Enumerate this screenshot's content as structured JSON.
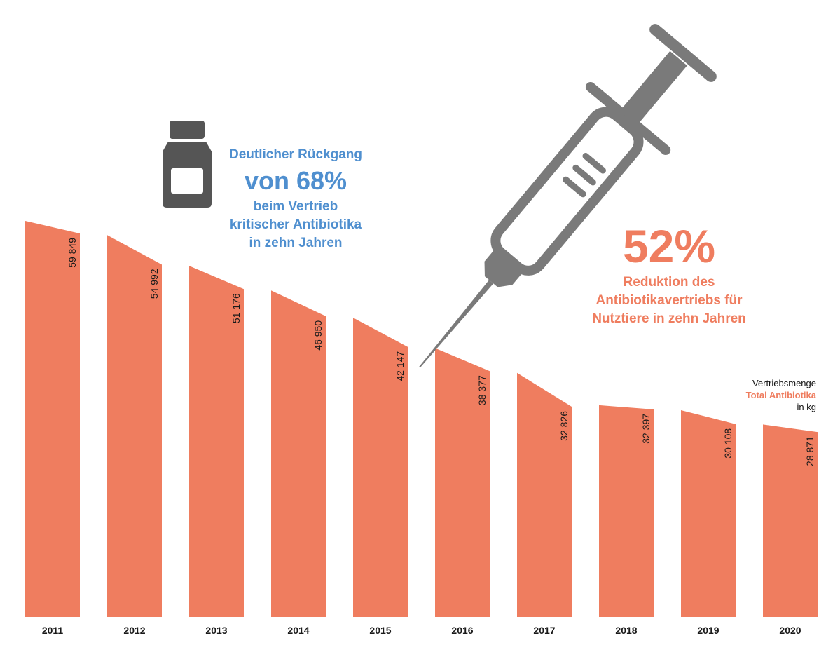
{
  "colors": {
    "bar": "#ef7d5f",
    "blue": "#4f8fcf",
    "icon": "#7a7a7a",
    "bottle": "#555555"
  },
  "highlight_blue": {
    "line1": "Deutlicher Rückgang",
    "big": "von 68%",
    "line2": "beim Vertrieb",
    "line3": "kritischer Antibiotika",
    "line4": "in zehn Jahren"
  },
  "highlight_orange": {
    "big": "52%",
    "line1": "Reduktion des",
    "line2": "Antibiotikavertriebs für",
    "line3": "Nutztiere in zehn Jahren"
  },
  "legend": {
    "line1": "Vertriebsmenge",
    "line2": "Total Antibiotika",
    "line3": "in kg"
  },
  "icons": {
    "bottle": "medicine-bottle-icon",
    "syringe": "syringe-icon"
  },
  "chart_data": {
    "type": "bar",
    "categories": [
      "2011",
      "2012",
      "2013",
      "2014",
      "2015",
      "2016",
      "2017",
      "2018",
      "2019",
      "2020"
    ],
    "values": [
      59849,
      54992,
      51176,
      46950,
      42147,
      38377,
      32826,
      32397,
      30108,
      28871
    ],
    "value_labels": [
      "59 849",
      "54 992",
      "51 176",
      "46 950",
      "42 147",
      "38 377",
      "32 826",
      "32 397",
      "30 108",
      "28 871"
    ],
    "ylim": [
      0,
      60000
    ],
    "grid": false,
    "unit": "kg"
  }
}
